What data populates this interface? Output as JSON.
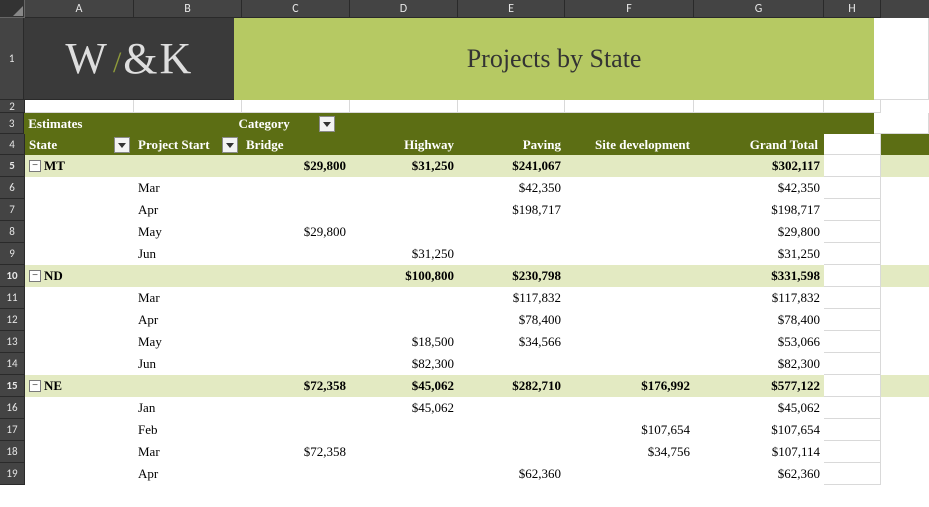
{
  "columns": {
    "letters": [
      "A",
      "B",
      "C",
      "D",
      "E",
      "F",
      "G",
      "H"
    ],
    "widths": [
      109,
      108,
      108,
      108,
      107,
      129,
      130,
      57
    ]
  },
  "row_heights": {
    "title": 82,
    "blank": 13,
    "hdr1": 21,
    "hdr2": 21,
    "data": 22
  },
  "colors": {
    "col_header_bg": "#444444",
    "col_header_fg": "#e6e6e6",
    "logo_bg": "#3a3a3a",
    "title_bg": "#b6c963",
    "pivot_header_bg": "#5c6e14",
    "pivot_header_fg": "#ffffff",
    "group_bg": "#e3eac2",
    "accent": "#8f9b3a",
    "gridline": "#d9d9d9"
  },
  "logo_text": {
    "w": "W",
    "amp": "&",
    "k": "K"
  },
  "title": "Projects by State",
  "pivot": {
    "values_label": "Estimates",
    "column_field": "Category",
    "row_fields": [
      "State",
      "Project Start"
    ],
    "column_headers": [
      "Bridge",
      "Highway",
      "Paving",
      "Site development",
      "Grand Total"
    ]
  },
  "rows": [
    {
      "n": 5,
      "type": "group",
      "state": "MT",
      "vals": [
        "$29,800",
        "$31,250",
        "$241,067",
        "",
        "$302,117"
      ]
    },
    {
      "n": 6,
      "type": "data",
      "month": "Mar",
      "vals": [
        "",
        "",
        "$42,350",
        "",
        "$42,350"
      ]
    },
    {
      "n": 7,
      "type": "data",
      "month": "Apr",
      "vals": [
        "",
        "",
        "$198,717",
        "",
        "$198,717"
      ]
    },
    {
      "n": 8,
      "type": "data",
      "month": "May",
      "vals": [
        "$29,800",
        "",
        "",
        "",
        "$29,800"
      ]
    },
    {
      "n": 9,
      "type": "data",
      "month": "Jun",
      "vals": [
        "",
        "$31,250",
        "",
        "",
        "$31,250"
      ]
    },
    {
      "n": 10,
      "type": "group",
      "state": "ND",
      "vals": [
        "",
        "$100,800",
        "$230,798",
        "",
        "$331,598"
      ]
    },
    {
      "n": 11,
      "type": "data",
      "month": "Mar",
      "vals": [
        "",
        "",
        "$117,832",
        "",
        "$117,832"
      ]
    },
    {
      "n": 12,
      "type": "data",
      "month": "Apr",
      "vals": [
        "",
        "",
        "$78,400",
        "",
        "$78,400"
      ]
    },
    {
      "n": 13,
      "type": "data",
      "month": "May",
      "vals": [
        "",
        "$18,500",
        "$34,566",
        "",
        "$53,066"
      ]
    },
    {
      "n": 14,
      "type": "data",
      "month": "Jun",
      "vals": [
        "",
        "$82,300",
        "",
        "",
        "$82,300"
      ]
    },
    {
      "n": 15,
      "type": "group",
      "state": "NE",
      "vals": [
        "$72,358",
        "$45,062",
        "$282,710",
        "$176,992",
        "$577,122"
      ]
    },
    {
      "n": 16,
      "type": "data",
      "month": "Jan",
      "vals": [
        "",
        "$45,062",
        "",
        "",
        "$45,062"
      ]
    },
    {
      "n": 17,
      "type": "data",
      "month": "Feb",
      "vals": [
        "",
        "",
        "",
        "$107,654",
        "$107,654"
      ]
    },
    {
      "n": 18,
      "type": "data",
      "month": "Mar",
      "vals": [
        "$72,358",
        "",
        "",
        "$34,756",
        "$107,114"
      ]
    },
    {
      "n": 19,
      "type": "data",
      "month": "Apr",
      "vals": [
        "",
        "",
        "$62,360",
        "",
        "$62,360"
      ]
    }
  ]
}
